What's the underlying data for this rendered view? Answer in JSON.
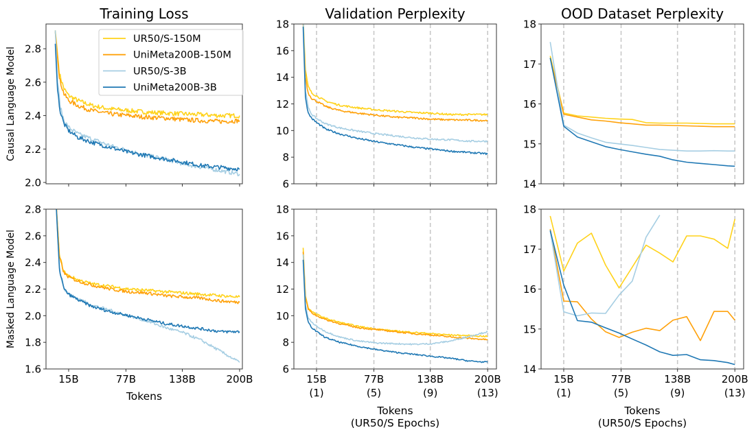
{
  "chart_data": [
    {
      "type": "line",
      "id": "clm-train",
      "title": "Training Loss",
      "ylabel": "Causal Language Model",
      "xlabel": "",
      "ylim": [
        1.992,
        2.948
      ],
      "xlim": [
        -9.5,
        203
      ],
      "yticks": [
        "2.0",
        "2.2",
        "2.4",
        "2.6",
        "2.8"
      ],
      "xticks": [],
      "grid_dashed_x": false,
      "noise": 0.012,
      "series": [
        {
          "name": "UR50/S-150M",
          "x": [
            0.5,
            5,
            10,
            15,
            25,
            40,
            60,
            80,
            100,
            120,
            140,
            160,
            180,
            200
          ],
          "y": [
            2.91,
            2.65,
            2.56,
            2.52,
            2.49,
            2.46,
            2.44,
            2.43,
            2.42,
            2.415,
            2.41,
            2.405,
            2.4,
            2.4
          ]
        },
        {
          "name": "UniMeta200B-150M",
          "x": [
            0.5,
            5,
            10,
            15,
            25,
            40,
            60,
            80,
            100,
            120,
            140,
            160,
            180,
            200
          ],
          "y": [
            2.9,
            2.62,
            2.53,
            2.49,
            2.46,
            2.43,
            2.41,
            2.4,
            2.39,
            2.385,
            2.375,
            2.37,
            2.365,
            2.37
          ]
        },
        {
          "name": "UR50/S-3B",
          "x": [
            0.5,
            3,
            6,
            10,
            15,
            25,
            40,
            60,
            80,
            100,
            120,
            140,
            160,
            180,
            200
          ],
          "y": [
            2.91,
            2.6,
            2.45,
            2.37,
            2.33,
            2.29,
            2.26,
            2.22,
            2.19,
            2.16,
            2.14,
            2.11,
            2.09,
            2.07,
            2.05
          ]
        },
        {
          "name": "UniMeta200B-3B",
          "x": [
            0.5,
            3,
            6,
            10,
            15,
            25,
            40,
            60,
            80,
            100,
            120,
            140,
            160,
            180,
            200
          ],
          "y": [
            2.83,
            2.55,
            2.42,
            2.35,
            2.31,
            2.27,
            2.24,
            2.21,
            2.18,
            2.16,
            2.14,
            2.12,
            2.1,
            2.09,
            2.08
          ]
        }
      ]
    },
    {
      "type": "line",
      "id": "clm-val",
      "title": "Validation Perplexity",
      "ylabel": "",
      "xlabel": "",
      "ylim": [
        6,
        18
      ],
      "xlim": [
        -9.5,
        209.5
      ],
      "yticks": [
        "6",
        "8",
        "10",
        "12",
        "14",
        "16",
        "18"
      ],
      "xticks": [],
      "grid_dashed_x": true,
      "noise": 0.06,
      "series": [
        {
          "name": "UR50/S-150M",
          "x": [
            0.5,
            3,
            6,
            10,
            15,
            25,
            40,
            60,
            80,
            100,
            120,
            140,
            160,
            180,
            200
          ],
          "y": [
            18.5,
            14.5,
            13.3,
            12.8,
            12.6,
            12.2,
            11.9,
            11.7,
            11.55,
            11.45,
            11.35,
            11.3,
            11.2,
            11.2,
            11.2
          ]
        },
        {
          "name": "UniMeta200B-150M",
          "x": [
            0.5,
            3,
            6,
            10,
            15,
            25,
            40,
            60,
            80,
            100,
            120,
            140,
            160,
            180,
            200
          ],
          "y": [
            18,
            14,
            12.8,
            12.4,
            12.2,
            11.8,
            11.5,
            11.3,
            11.15,
            11,
            10.95,
            10.85,
            10.8,
            10.78,
            10.75
          ]
        },
        {
          "name": "UR50/S-3B",
          "x": [
            0.5,
            3,
            6,
            10,
            15,
            25,
            40,
            60,
            80,
            100,
            120,
            140,
            160,
            180,
            200
          ],
          "y": [
            18.5,
            13,
            11.7,
            11.2,
            10.9,
            10.5,
            10.2,
            9.95,
            9.75,
            9.6,
            9.45,
            9.35,
            9.3,
            9.2,
            9.2
          ]
        },
        {
          "name": "UniMeta200B-3B",
          "x": [
            0.5,
            3,
            6,
            10,
            15,
            25,
            40,
            60,
            80,
            100,
            120,
            140,
            160,
            180,
            200
          ],
          "y": [
            17.8,
            12.5,
            11.3,
            10.9,
            10.6,
            10.1,
            9.75,
            9.4,
            9.15,
            8.95,
            8.75,
            8.6,
            8.45,
            8.35,
            8.25
          ]
        }
      ]
    },
    {
      "type": "line",
      "id": "clm-ood",
      "title": "OOD Dataset Perplexity",
      "ylabel": "",
      "xlabel": "",
      "ylim": [
        14,
        18
      ],
      "xlim": [
        -9.5,
        209.5
      ],
      "yticks": [
        "14",
        "15",
        "16",
        "17",
        "18"
      ],
      "xticks": [],
      "grid_dashed_x": true,
      "noise": 0,
      "series": [
        {
          "name": "UR50/S-150M",
          "x": [
            0.4,
            15,
            29.8,
            44.9,
            60.2,
            74.8,
            89.1,
            104,
            118.8,
            133.1,
            147.9,
            162.7,
            177.5,
            192.3,
            200
          ],
          "y": [
            17.2,
            15.77,
            15.7,
            15.67,
            15.64,
            15.62,
            15.61,
            15.53,
            15.52,
            15.52,
            15.52,
            15.51,
            15.5,
            15.5,
            15.5
          ]
        },
        {
          "name": "UniMeta200B-150M",
          "x": [
            0.4,
            15,
            29.8,
            44.9,
            60.2,
            74.8,
            89.1,
            104,
            118.8,
            133.1,
            147.9,
            162.7,
            177.5,
            192.3,
            200
          ],
          "y": [
            17.15,
            15.74,
            15.67,
            15.6,
            15.57,
            15.53,
            15.5,
            15.47,
            15.47,
            15.46,
            15.45,
            15.44,
            15.43,
            15.43,
            15.43
          ]
        },
        {
          "name": "UR50/S-3B",
          "x": [
            0.4,
            15,
            29.8,
            44.9,
            60.2,
            74.8,
            89.1,
            104,
            118.8,
            133.1,
            147.9,
            162.7,
            177.5,
            192.3,
            200
          ],
          "y": [
            17.55,
            15.47,
            15.27,
            15.15,
            15.04,
            15.0,
            14.96,
            14.91,
            14.86,
            14.84,
            14.82,
            14.82,
            14.83,
            14.82,
            14.82
          ]
        },
        {
          "name": "UniMeta200B-3B",
          "x": [
            0.4,
            15,
            29.8,
            44.9,
            60.2,
            74.8,
            89.1,
            104,
            118.8,
            133.1,
            147.9,
            162.7,
            177.5,
            192.3,
            200
          ],
          "y": [
            17.15,
            15.44,
            15.17,
            15.05,
            14.93,
            14.86,
            14.8,
            14.74,
            14.69,
            14.6,
            14.54,
            14.51,
            14.48,
            14.45,
            14.44
          ]
        }
      ]
    },
    {
      "type": "line",
      "id": "mlm-train",
      "title": "",
      "ylabel": "Masked Language Model",
      "xlabel": "Tokens",
      "ylim": [
        1.6,
        2.8
      ],
      "xlim": [
        -9.5,
        203
      ],
      "yticks": [
        "1.6",
        "1.8",
        "2.0",
        "2.2",
        "2.4",
        "2.6",
        "2.8"
      ],
      "xticks": [
        "15B",
        "77B",
        "138B",
        "200B"
      ],
      "xtick_sub": [],
      "grid_dashed_x": false,
      "noise": 0.01,
      "series": [
        {
          "name": "UR50/S-150M",
          "x": [
            1,
            5,
            10,
            15,
            25,
            40,
            60,
            80,
            100,
            120,
            140,
            160,
            180,
            200
          ],
          "y": [
            2.9,
            2.45,
            2.33,
            2.3,
            2.27,
            2.24,
            2.22,
            2.2,
            2.19,
            2.18,
            2.17,
            2.16,
            2.15,
            2.14
          ]
        },
        {
          "name": "UniMeta200B-150M",
          "x": [
            1,
            5,
            10,
            15,
            25,
            40,
            60,
            80,
            100,
            120,
            140,
            160,
            180,
            200
          ],
          "y": [
            2.9,
            2.44,
            2.32,
            2.29,
            2.26,
            2.23,
            2.2,
            2.18,
            2.17,
            2.15,
            2.14,
            2.13,
            2.11,
            2.1
          ]
        },
        {
          "name": "UR50/S-3B",
          "x": [
            1,
            5,
            10,
            15,
            25,
            40,
            60,
            80,
            100,
            120,
            140,
            160,
            180,
            200
          ],
          "y": [
            2.9,
            2.35,
            2.2,
            2.16,
            2.13,
            2.08,
            2.04,
            2.0,
            1.96,
            1.91,
            1.87,
            1.81,
            1.73,
            1.65
          ]
        },
        {
          "name": "UniMeta200B-3B",
          "x": [
            1,
            5,
            10,
            15,
            25,
            40,
            60,
            80,
            100,
            120,
            140,
            160,
            180,
            200
          ],
          "y": [
            2.9,
            2.35,
            2.2,
            2.16,
            2.12,
            2.07,
            2.03,
            2.0,
            1.97,
            1.94,
            1.92,
            1.9,
            1.88,
            1.88
          ]
        }
      ]
    },
    {
      "type": "line",
      "id": "mlm-val",
      "title": "",
      "ylabel": "",
      "xlabel": "Tokens",
      "xlabel2": "(UR50/S Epochs)",
      "ylim": [
        6,
        18
      ],
      "xlim": [
        -9.5,
        209.5
      ],
      "yticks": [
        "6",
        "8",
        "10",
        "12",
        "14",
        "16",
        "18"
      ],
      "xticks": [
        "15B",
        "77B",
        "138B",
        "200B"
      ],
      "xtick_sub": [
        "(1)",
        "(5)",
        "(9)",
        "(13)"
      ],
      "grid_dashed_x": true,
      "noise": 0.05,
      "series": [
        {
          "name": "UR50/S-150M",
          "x": [
            0.5,
            3,
            6,
            10,
            15,
            25,
            40,
            60,
            80,
            100,
            120,
            140,
            160,
            180,
            200
          ],
          "y": [
            15.1,
            11.5,
            10.6,
            10.3,
            10.1,
            9.8,
            9.5,
            9.2,
            9.0,
            8.85,
            8.75,
            8.65,
            8.55,
            8.5,
            8.45
          ]
        },
        {
          "name": "UniMeta200B-150M",
          "x": [
            0.5,
            3,
            6,
            10,
            15,
            25,
            40,
            60,
            80,
            100,
            120,
            140,
            160,
            180,
            200
          ],
          "y": [
            14.8,
            11.4,
            10.5,
            10.2,
            10.0,
            9.7,
            9.4,
            9.1,
            8.95,
            8.8,
            8.65,
            8.55,
            8.4,
            8.3,
            8.2
          ]
        },
        {
          "name": "UR50/S-3B",
          "x": [
            0.5,
            3,
            6,
            10,
            15,
            25,
            40,
            60,
            80,
            100,
            120,
            140,
            160,
            180,
            200
          ],
          "y": [
            14.6,
            10.8,
            9.8,
            9.5,
            9.2,
            8.8,
            8.4,
            8.1,
            7.95,
            7.9,
            7.85,
            7.9,
            8.1,
            8.45,
            8.8
          ]
        },
        {
          "name": "UniMeta200B-3B",
          "x": [
            0.5,
            3,
            6,
            10,
            15,
            25,
            40,
            60,
            80,
            100,
            120,
            140,
            160,
            180,
            200
          ],
          "y": [
            14.2,
            10.5,
            9.5,
            9.1,
            8.8,
            8.35,
            8.0,
            7.7,
            7.45,
            7.25,
            7.1,
            6.95,
            6.8,
            6.6,
            6.5
          ]
        }
      ]
    },
    {
      "type": "line",
      "id": "mlm-ood",
      "title": "",
      "ylabel": "",
      "xlabel": "Tokens",
      "xlabel2": "(UR50/S Epochs)",
      "ylim": [
        14,
        18
      ],
      "xlim": [
        -9.5,
        209.5
      ],
      "yticks": [
        "14",
        "15",
        "16",
        "17",
        "18"
      ],
      "xticks": [
        "15B",
        "77B",
        "138B",
        "200B"
      ],
      "xtick_sub": [
        "(1)",
        "(5)",
        "(9)",
        "(13)"
      ],
      "grid_dashed_x": true,
      "noise": 0,
      "series": [
        {
          "name": "UR50/S-150M",
          "x": [
            0.4,
            15,
            29.8,
            44.9,
            60.2,
            74.8,
            89.1,
            104,
            118.8,
            133.1,
            147.9,
            162.7,
            177.5,
            192.3,
            200
          ],
          "y": [
            17.83,
            16.45,
            17.15,
            17.4,
            16.6,
            16.03,
            16.55,
            17.1,
            16.9,
            16.68,
            17.33,
            17.33,
            17.25,
            17.02,
            17.75
          ]
        },
        {
          "name": "UniMeta200B-150M",
          "x": [
            0.4,
            15,
            29.8,
            44.9,
            60.2,
            74.8,
            89.1,
            104,
            118.8,
            133.1,
            147.9,
            162.7,
            177.5,
            192.3,
            200
          ],
          "y": [
            17.5,
            15.7,
            15.68,
            15.25,
            14.93,
            14.79,
            14.92,
            15.02,
            14.96,
            15.22,
            15.31,
            14.71,
            15.44,
            15.44,
            15.22
          ]
        },
        {
          "name": "UR50/S-3B",
          "x": [
            0.4,
            15,
            29.8,
            44.9,
            60.2,
            74.8,
            89.1,
            104,
            118.8
          ],
          "y": [
            17.45,
            15.43,
            15.33,
            15.4,
            15.39,
            15.85,
            16.2,
            17.3,
            17.85
          ]
        },
        {
          "name": "UniMeta200B-3B",
          "x": [
            0.4,
            15,
            29.8,
            44.9,
            60.2,
            74.8,
            89.1,
            104,
            118.8,
            133.1,
            147.9,
            162.7,
            177.5,
            192.3,
            200
          ],
          "y": [
            17.47,
            16.1,
            15.21,
            15.17,
            15.03,
            14.9,
            14.75,
            14.6,
            14.43,
            14.34,
            14.36,
            14.23,
            14.21,
            14.16,
            14.11
          ]
        }
      ]
    }
  ],
  "legend": {
    "position": "upper-right of first panel",
    "items": [
      "UR50/S-150M",
      "UniMeta200B-150M",
      "UR50/S-3B",
      "UniMeta200B-3B"
    ]
  },
  "colors": {
    "UR50/S-150M": "#ffd21a",
    "UniMeta200B-150M": "#ffa10a",
    "UR50/S-3B": "#a6cee3",
    "UniMeta200B-3B": "#1f78b4"
  },
  "dashed_x_values": [
    15,
    77,
    138,
    200
  ]
}
